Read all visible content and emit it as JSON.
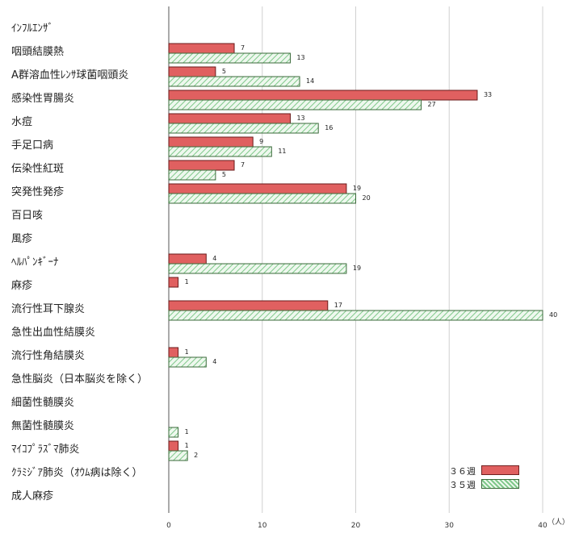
{
  "chart_data": {
    "type": "bar",
    "orientation": "horizontal",
    "categories": [
      "ｲﾝﾌﾙｴﾝｻﾞ",
      "咽頭結膜熱",
      "A群溶血性ﾚﾝｻ球菌咽頭炎",
      "感染性胃腸炎",
      "水痘",
      "手足口病",
      "伝染性紅斑",
      "突発性発疹",
      "百日咳",
      "風疹",
      "ﾍﾙﾊﾟﾝｷﾞｰﾅ",
      "麻疹",
      "流行性耳下腺炎",
      "急性出血性結膜炎",
      "流行性角結膜炎",
      "急性脳炎（日本脳炎を除く）",
      "細菌性髄膜炎",
      "無菌性髄膜炎",
      "ﾏｲｺﾌﾟﾗｽﾞﾏ肺炎",
      "ｸﾗﾐｼﾞｱ肺炎（ｵｳﾑ病は除く）",
      "成人麻疹"
    ],
    "series": [
      {
        "name": "３６週",
        "color": "#e06060",
        "values": [
          0,
          7,
          5,
          33,
          13,
          9,
          7,
          19,
          0,
          0,
          4,
          1,
          17,
          0,
          1,
          0,
          0,
          0,
          1,
          0,
          0
        ],
        "labels": [
          "",
          "7",
          "5",
          "33",
          "13",
          "9",
          "7",
          "19",
          "",
          "",
          "4",
          "1",
          "17",
          "",
          "1",
          "",
          "",
          "",
          "1",
          "",
          ""
        ]
      },
      {
        "name": "３５週",
        "color": "#d8f0d8",
        "values": [
          0,
          13,
          14,
          27,
          16,
          11,
          5,
          20,
          0,
          0,
          19,
          0,
          40,
          0,
          4,
          0,
          0,
          1,
          2,
          0,
          0
        ],
        "labels": [
          "",
          "13",
          "14",
          "27",
          "16",
          "11",
          "5",
          "20",
          "",
          "",
          "19",
          "",
          "40",
          "",
          "4",
          "",
          "",
          "1",
          "2",
          "",
          ""
        ]
      }
    ],
    "xlim": [
      0,
      40
    ],
    "xticks": [
      "0",
      "10",
      "20",
      "30",
      "40"
    ],
    "xunit": "（人）",
    "grid": true,
    "legend_position": "bottom-right"
  }
}
